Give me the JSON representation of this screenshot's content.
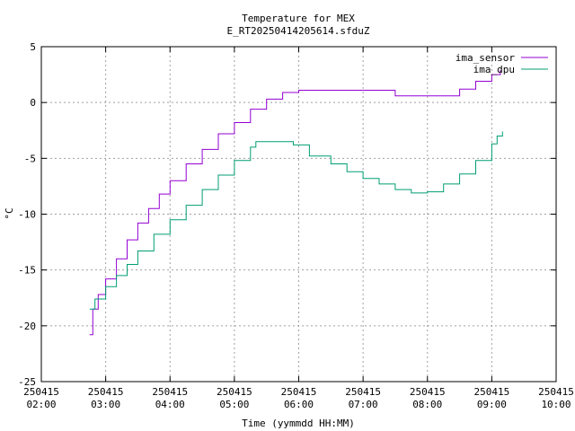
{
  "chart_data": {
    "type": "line",
    "title": "Temperature for MEX",
    "subtitle": "E_RT20250414205614.sfduZ",
    "xlabel": "Time (yymmdd HH:MM)",
    "ylabel": "°C",
    "xlim": [
      "250415 02:00",
      "250415 10:00"
    ],
    "ylim": [
      -25,
      5
    ],
    "grid": true,
    "legend_position": "top-right",
    "x_ticks": [
      {
        "date": "250415",
        "time": "02:00",
        "hour": 2
      },
      {
        "date": "250415",
        "time": "03:00",
        "hour": 3
      },
      {
        "date": "250415",
        "time": "04:00",
        "hour": 4
      },
      {
        "date": "250415",
        "time": "05:00",
        "hour": 5
      },
      {
        "date": "250415",
        "time": "06:00",
        "hour": 6
      },
      {
        "date": "250415",
        "time": "07:00",
        "hour": 7
      },
      {
        "date": "250415",
        "time": "08:00",
        "hour": 8
      },
      {
        "date": "250415",
        "time": "09:00",
        "hour": 9
      },
      {
        "date": "250415",
        "time": "10:00",
        "hour": 10
      }
    ],
    "y_ticks": [
      5,
      0,
      -5,
      -10,
      -15,
      -20,
      -25
    ],
    "series": [
      {
        "name": "ima_sensor",
        "color": "#9400d3",
        "points": [
          [
            "250415 02:45",
            -20.8
          ],
          [
            "250415 02:48",
            -18.5
          ],
          [
            "250415 02:53",
            -17.2
          ],
          [
            "250415 03:00",
            -15.8
          ],
          [
            "250415 03:10",
            -14.0
          ],
          [
            "250415 03:20",
            -12.3
          ],
          [
            "250415 03:30",
            -10.8
          ],
          [
            "250415 03:40",
            -9.5
          ],
          [
            "250415 03:50",
            -8.2
          ],
          [
            "250415 04:00",
            -7.0
          ],
          [
            "250415 04:15",
            -5.5
          ],
          [
            "250415 04:30",
            -4.2
          ],
          [
            "250415 04:45",
            -2.8
          ],
          [
            "250415 05:00",
            -1.8
          ],
          [
            "250415 05:15",
            -0.6
          ],
          [
            "250415 05:30",
            0.3
          ],
          [
            "250415 05:45",
            0.9
          ],
          [
            "250415 06:00",
            1.1
          ],
          [
            "250415 06:30",
            1.1
          ],
          [
            "250415 07:00",
            1.1
          ],
          [
            "250415 07:20",
            1.1
          ],
          [
            "250415 07:30",
            0.6
          ],
          [
            "250415 08:00",
            0.6
          ],
          [
            "250415 08:20",
            0.6
          ],
          [
            "250415 08:30",
            1.2
          ],
          [
            "250415 08:45",
            1.9
          ],
          [
            "250415 09:00",
            2.5
          ],
          [
            "250415 09:08",
            2.9
          ]
        ]
      },
      {
        "name": "ima_dpu",
        "color": "#009e73",
        "points": [
          [
            "250415 02:45",
            -18.5
          ],
          [
            "250415 02:50",
            -17.6
          ],
          [
            "250415 03:00",
            -16.5
          ],
          [
            "250415 03:10",
            -15.5
          ],
          [
            "250415 03:20",
            -14.5
          ],
          [
            "250415 03:30",
            -13.3
          ],
          [
            "250415 03:45",
            -11.8
          ],
          [
            "250415 04:00",
            -10.5
          ],
          [
            "250415 04:15",
            -9.2
          ],
          [
            "250415 04:30",
            -7.8
          ],
          [
            "250415 04:45",
            -6.5
          ],
          [
            "250415 05:00",
            -5.2
          ],
          [
            "250415 05:15",
            -4.0
          ],
          [
            "250415 05:20",
            -3.5
          ],
          [
            "250415 05:45",
            -3.5
          ],
          [
            "250415 05:55",
            -3.8
          ],
          [
            "250415 06:10",
            -4.8
          ],
          [
            "250415 06:30",
            -5.5
          ],
          [
            "250415 06:45",
            -6.2
          ],
          [
            "250415 07:00",
            -6.8
          ],
          [
            "250415 07:15",
            -7.3
          ],
          [
            "250415 07:30",
            -7.8
          ],
          [
            "250415 07:45",
            -8.1
          ],
          [
            "250415 08:00",
            -8.0
          ],
          [
            "250415 08:15",
            -7.3
          ],
          [
            "250415 08:30",
            -6.4
          ],
          [
            "250415 08:45",
            -5.2
          ],
          [
            "250415 09:00",
            -3.7
          ],
          [
            "250415 09:05",
            -3.0
          ],
          [
            "250415 09:10",
            -2.6
          ]
        ]
      }
    ]
  }
}
